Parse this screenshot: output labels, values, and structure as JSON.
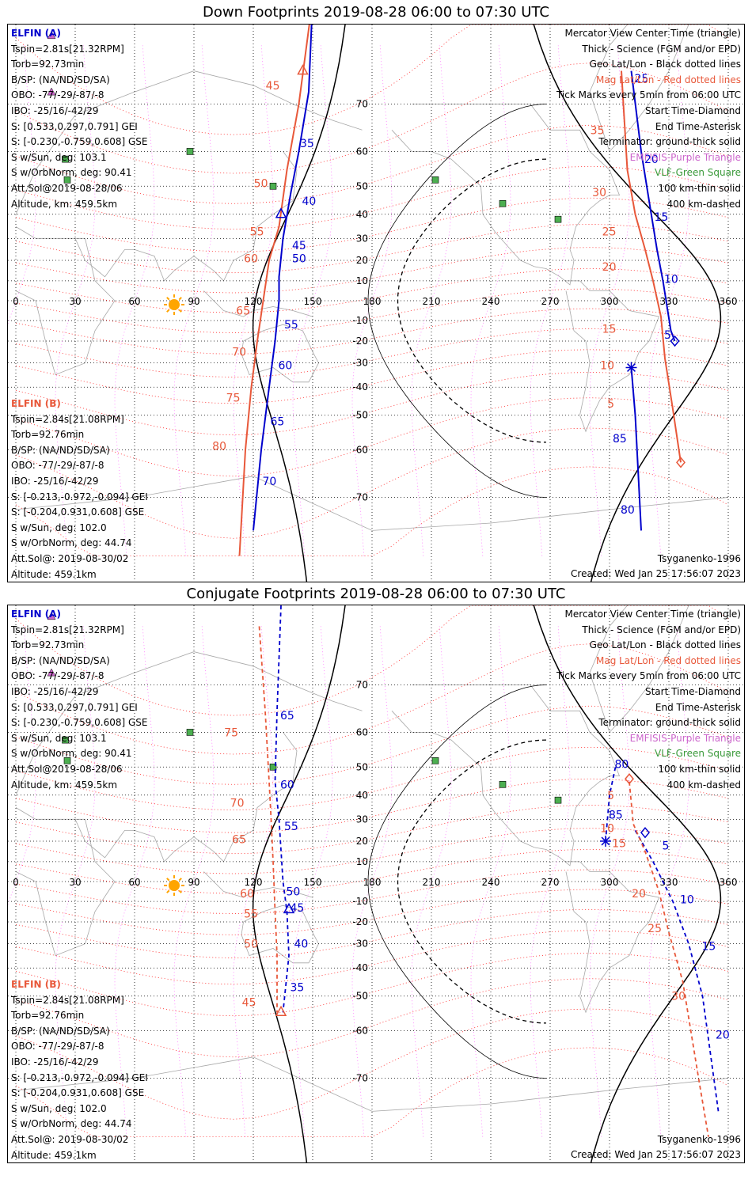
{
  "panels": [
    {
      "title": "Down Footprints 2019-08-28 06:00 to 07:30 UTC",
      "elfin_a": {
        "header": "ELFIN (A)",
        "lines": [
          "Tspin=2.81s[21.32RPM]",
          "Torb=92.73min",
          "B/SP: (NA/ND/SD/SA)",
          "OBO: -77/-29/-87/-8",
          "IBO: -25/16/-42/29",
          "S: [0.533,0.297,0.791] GEI",
          "S: [-0.230,-0.759,0.608] GSE",
          "S w/Sun, deg: 103.1",
          "S w/OrbNorm, deg: 90.41",
          "Att.Sol@2019-08-28/06",
          "Altitude, km: 459.5km"
        ]
      },
      "elfin_b": {
        "header": "ELFIN (B)",
        "lines": [
          "Tspin=2.84s[21.08RPM]",
          "Torb=92.76min",
          "B/SP: (NA/ND/SD/SA)",
          "OBO: -77/-29/-87/-8",
          "IBO: -25/16/-42/29",
          "S: [-0.213,-0.972,-0.094] GEI",
          "S: [-0.204,0.931,0.608] GSE",
          "S w/Sun, deg: 102.0",
          "S w/OrbNorm, deg: 44.74",
          "Att.Sol@: 2019-08-30/02",
          "Altitude: 459.1km"
        ]
      },
      "legend": [
        "Mercator View Center Time (triangle)",
        "Thick - Science (FGM and/or EPD)",
        "Geo Lat/Lon - Black dotted lines",
        "Mag Lat/Lon - Red dotted lines",
        "Tick Marks every 5min from 06:00 UTC",
        "Start Time-Diamond",
        "End Time-Asterisk",
        "Terminator: ground-thick solid",
        "EMFISIS-Purple Triangle",
        "VLF-Green Square",
        "100 km-thin solid",
        "400 km-dashed"
      ],
      "model": "Tsyganenko-1996",
      "created": "Created: Wed Jan 25 17:56:07 2023",
      "lon_ticks": [
        "0",
        "30",
        "60",
        "90",
        "120",
        "150",
        "180",
        "210",
        "240",
        "270",
        "300",
        "330",
        "360"
      ],
      "lat_labels": [
        {
          "lat": 70,
          "text": "70"
        },
        {
          "lat": 60,
          "text": "60"
        },
        {
          "lat": 50,
          "text": "50"
        },
        {
          "lat": 40,
          "text": "40"
        },
        {
          "lat": 30,
          "text": "30"
        },
        {
          "lat": 20,
          "text": "20"
        },
        {
          "lat": 10,
          "text": "10"
        },
        {
          "lat": -10,
          "text": "-10"
        },
        {
          "lat": -20,
          "text": "-20"
        },
        {
          "lat": -30,
          "text": "-30"
        },
        {
          "lat": -40,
          "text": "-40"
        },
        {
          "lat": -50,
          "text": "-50"
        },
        {
          "lat": -60,
          "text": "-60"
        },
        {
          "lat": -70,
          "text": "-70"
        }
      ],
      "track_a_labels": [
        {
          "lon": 304,
          "lat": -72,
          "text": "80"
        },
        {
          "lon": 300,
          "lat": -57,
          "text": "85"
        },
        {
          "lon": 326,
          "lat": -17,
          "text": "5"
        },
        {
          "lon": 326,
          "lat": 11,
          "text": "10"
        },
        {
          "lon": 321,
          "lat": 39,
          "text": "15"
        },
        {
          "lon": 316,
          "lat": 58,
          "text": "20"
        },
        {
          "lon": 311,
          "lat": 74,
          "text": "25"
        },
        {
          "lon": 142,
          "lat": 62,
          "text": "35"
        },
        {
          "lon": 143,
          "lat": 45,
          "text": "40"
        },
        {
          "lon": 138,
          "lat": 27,
          "text": "45"
        },
        {
          "lon": 138,
          "lat": 21,
          "text": "50"
        },
        {
          "lon": 134,
          "lat": -12,
          "text": "55"
        },
        {
          "lon": 131,
          "lat": -31,
          "text": "60"
        },
        {
          "lon": 127,
          "lat": -52,
          "text": "65"
        },
        {
          "lon": 123,
          "lat": -67,
          "text": "70"
        }
      ],
      "track_b_labels": [
        {
          "lon": 304,
          "lat": -46,
          "text": "5"
        },
        {
          "lon": 304,
          "lat": -31,
          "text": "10"
        },
        {
          "lon": 305,
          "lat": -14,
          "text": "15"
        },
        {
          "lon": 305,
          "lat": 17,
          "text": "20"
        },
        {
          "lon": 305,
          "lat": 33,
          "text": "25"
        },
        {
          "lon": 300,
          "lat": 48,
          "text": "30"
        },
        {
          "lon": 299,
          "lat": 65,
          "text": "35"
        },
        {
          "lon": 135,
          "lat": 73,
          "text": "45"
        },
        {
          "lon": 129,
          "lat": 51,
          "text": "50"
        },
        {
          "lon": 127,
          "lat": 33,
          "text": "55"
        },
        {
          "lon": 124,
          "lat": 21,
          "text": "60"
        },
        {
          "lon": 120,
          "lat": -5,
          "text": "65"
        },
        {
          "lon": 118,
          "lat": -25,
          "text": "70"
        },
        {
          "lon": 115,
          "lat": -44,
          "text": "75"
        },
        {
          "lon": 108,
          "lat": -59,
          "text": "80"
        }
      ]
    },
    {
      "title": "Conjugate Footprints 2019-08-28 06:00 to 07:30 UTC",
      "elfin_a": {
        "header": "ELFIN (A)",
        "lines": [
          "Tspin=2.81s[21.32RPM]",
          "Torb=92.73min",
          "B/SP: (NA/ND/SD/SA)",
          "OBO: -77/-29/-87/-8",
          "IBO: -25/16/-42/29",
          "S: [0.533,0.297,0.791] GEI",
          "S: [-0.230,-0.759,0.608] GSE",
          "S w/Sun, deg: 103.1",
          "S w/OrbNorm, deg: 90.41",
          "Att.Sol@2019-08-28/06",
          "Altitude, km: 459.5km"
        ]
      },
      "elfin_b": {
        "header": "ELFIN (B)",
        "lines": [
          "Tspin=2.84s[21.08RPM]",
          "Torb=92.76min",
          "B/SP: (NA/ND/SD/SA)",
          "OBO: -77/-29/-87/-8",
          "IBO: -25/16/-42/29",
          "S: [-0.213,-0.972,-0.094] GEI",
          "S: [-0.204,0.931,0.608] GSE",
          "S w/Sun, deg: 102.0",
          "S w/OrbNorm, deg: 44.74",
          "Att.Sol@: 2019-08-30/02",
          "Altitude: 459.1km"
        ]
      },
      "legend": [
        "Mercator View Center Time (triangle)",
        "Thick - Science (FGM and/or EPD)",
        "Geo Lat/Lon - Black dotted lines",
        "Mag Lat/Lon - Red dotted lines",
        "Tick Marks every 5min from 06:00 UTC",
        "Start Time-Diamond",
        "End Time-Asterisk",
        "Terminator: ground-thick solid",
        "EMFISIS-Purple Triangle",
        "VLF-Green Square",
        "100 km-thin solid",
        "400 km-dashed"
      ],
      "model": "Tsyganenko-1996",
      "created": "Created: Wed Jan 25 17:56:07 2023",
      "lon_ticks": [
        "0",
        "30",
        "60",
        "90",
        "120",
        "150",
        "180",
        "210",
        "240",
        "270",
        "300",
        "330",
        "360"
      ],
      "lat_labels": [
        {
          "lat": 70,
          "text": "70"
        },
        {
          "lat": 60,
          "text": "60"
        },
        {
          "lat": 50,
          "text": "50"
        },
        {
          "lat": 40,
          "text": "40"
        },
        {
          "lat": 30,
          "text": "30"
        },
        {
          "lat": 20,
          "text": "20"
        },
        {
          "lat": 10,
          "text": "10"
        },
        {
          "lat": -10,
          "text": "-10"
        },
        {
          "lat": -20,
          "text": "-20"
        },
        {
          "lat": -30,
          "text": "-30"
        },
        {
          "lat": -40,
          "text": "-40"
        },
        {
          "lat": -50,
          "text": "-50"
        },
        {
          "lat": -60,
          "text": "-60"
        },
        {
          "lat": -70,
          "text": "-70"
        }
      ],
      "track_a_labels": [
        {
          "lon": 132,
          "lat": 64,
          "text": "65"
        },
        {
          "lon": 132,
          "lat": 44,
          "text": "60"
        },
        {
          "lon": 134,
          "lat": 27,
          "text": "55"
        },
        {
          "lon": 135,
          "lat": -5,
          "text": "50"
        },
        {
          "lon": 137,
          "lat": -13,
          "text": "45"
        },
        {
          "lon": 139,
          "lat": -30,
          "text": "40"
        },
        {
          "lon": 137,
          "lat": -47,
          "text": "35"
        },
        {
          "lon": 301,
          "lat": 51,
          "text": "80"
        },
        {
          "lon": 298,
          "lat": 32,
          "text": "85"
        },
        {
          "lon": 325,
          "lat": 18,
          "text": "5"
        },
        {
          "lon": 334,
          "lat": -9,
          "text": "10"
        },
        {
          "lon": 345,
          "lat": -31,
          "text": "15"
        },
        {
          "lon": 352,
          "lat": -61,
          "text": "20"
        }
      ],
      "track_b_labels": [
        {
          "lon": 114,
          "lat": 60,
          "text": "75"
        },
        {
          "lon": 117,
          "lat": 37,
          "text": "70"
        },
        {
          "lon": 118,
          "lat": 21,
          "text": "65"
        },
        {
          "lon": 122,
          "lat": -6,
          "text": "60"
        },
        {
          "lon": 124,
          "lat": -16,
          "text": "55"
        },
        {
          "lon": 124,
          "lat": -30,
          "text": "50"
        },
        {
          "lon": 123,
          "lat": -52,
          "text": "45"
        },
        {
          "lon": 304,
          "lat": 40,
          "text": "5"
        },
        {
          "lon": 304,
          "lat": 26,
          "text": "10"
        },
        {
          "lon": 310,
          "lat": 19,
          "text": "15"
        },
        {
          "lon": 320,
          "lat": -6,
          "text": "20"
        },
        {
          "lon": 328,
          "lat": -23,
          "text": "25"
        },
        {
          "lon": 340,
          "lat": -50,
          "text": "30"
        }
      ]
    }
  ]
}
